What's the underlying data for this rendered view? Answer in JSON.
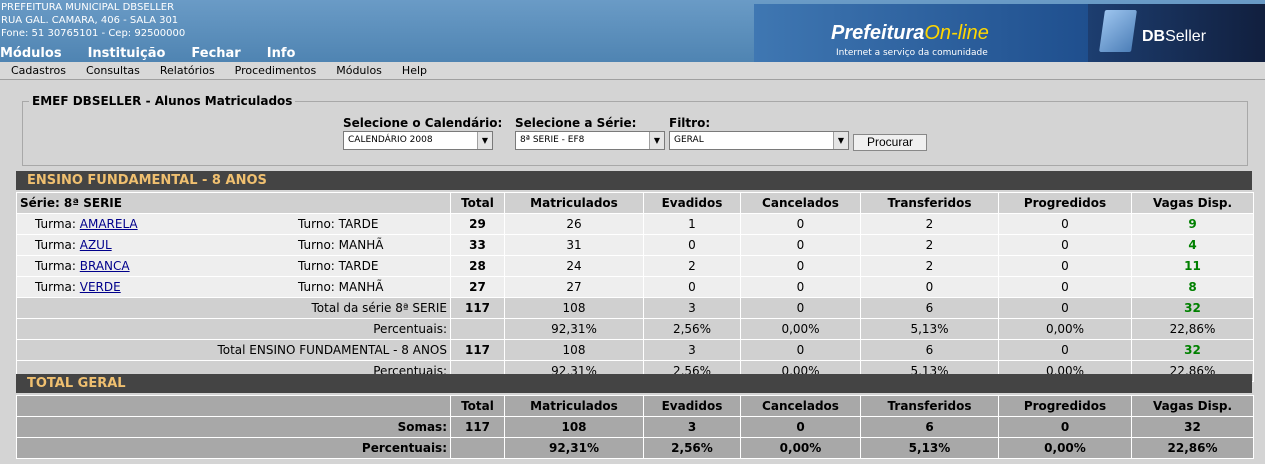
{
  "header": {
    "org_lines": [
      "PREFEITURA MUNICIPAL DBSELLER",
      "RUA GAL. CAMARA, 406 - SALA 301",
      "Fone: 51 30765101  -  Cep: 92500000"
    ],
    "nav": [
      "Módulos",
      "Instituição",
      "Fechar",
      "Info"
    ],
    "logo_title_a": "Prefeitura",
    "logo_title_b": "On-line",
    "logo_sub": "Internet a serviço da comunidade",
    "brand_a": "DB",
    "brand_b": "Seller"
  },
  "menu": [
    "Cadastros",
    "Consultas",
    "Relatórios",
    "Procedimentos",
    "Módulos",
    "Help"
  ],
  "form": {
    "legend": "EMEF DBSELLER - Alunos Matriculados",
    "calendario_label": "Selecione o Calendário:",
    "calendario_value": "CALENDÁRIO 2008",
    "serie_label": "Selecione a Série:",
    "serie_value": "8ª SERIE - EF8",
    "filtro_label": "Filtro:",
    "filtro_value": "GERAL",
    "button": "Procurar"
  },
  "section1": {
    "title": "ENSINO FUNDAMENTAL - 8 ANOS",
    "serie_header": "Série: 8ª SERIE",
    "columns": [
      "Total",
      "Matriculados",
      "Evadidos",
      "Cancelados",
      "Transferidos",
      "Progredidos",
      "Vagas Disp."
    ],
    "turma_label": "Turma:",
    "turno_label": "Turno:",
    "rows": [
      {
        "turma": "AMARELA",
        "turno": "TARDE",
        "total": "29",
        "mat": "26",
        "eva": "1",
        "can": "0",
        "tra": "2",
        "pro": "0",
        "vag": "9"
      },
      {
        "turma": "AZUL",
        "turno": "MANHÃ",
        "total": "33",
        "mat": "31",
        "eva": "0",
        "can": "0",
        "tra": "2",
        "pro": "0",
        "vag": "4"
      },
      {
        "turma": "BRANCA",
        "turno": "TARDE",
        "total": "28",
        "mat": "24",
        "eva": "2",
        "can": "0",
        "tra": "2",
        "pro": "0",
        "vag": "11"
      },
      {
        "turma": "VERDE",
        "turno": "MANHÃ",
        "total": "27",
        "mat": "27",
        "eva": "0",
        "can": "0",
        "tra": "0",
        "pro": "0",
        "vag": "8"
      }
    ],
    "serie_total": {
      "label": "Total da série 8ª SERIE",
      "total": "117",
      "mat": "108",
      "eva": "3",
      "can": "0",
      "tra": "6",
      "pro": "0",
      "vag": "32"
    },
    "serie_pct": {
      "label": "Percentuais:",
      "mat": "92,31%",
      "eva": "2,56%",
      "can": "0,00%",
      "tra": "5,13%",
      "pro": "0,00%",
      "vag": "22,86%"
    },
    "ensino_total": {
      "label": "Total ENSINO FUNDAMENTAL - 8 ANOS",
      "total": "117",
      "mat": "108",
      "eva": "3",
      "can": "0",
      "tra": "6",
      "pro": "0",
      "vag": "32"
    },
    "ensino_pct": {
      "label": "Percentuais:",
      "mat": "92,31%",
      "eva": "2,56%",
      "can": "0,00%",
      "tra": "5,13%",
      "pro": "0,00%",
      "vag": "22,86%"
    }
  },
  "section2": {
    "title": "TOTAL GERAL",
    "somas": {
      "label": "Somas:",
      "total": "117",
      "mat": "108",
      "eva": "3",
      "can": "0",
      "tra": "6",
      "pro": "0",
      "vag": "32"
    },
    "pct": {
      "label": "Percentuais:",
      "mat": "92,31%",
      "eva": "2,56%",
      "can": "0,00%",
      "tra": "5,13%",
      "pro": "0,00%",
      "vag": "22,86%"
    }
  }
}
